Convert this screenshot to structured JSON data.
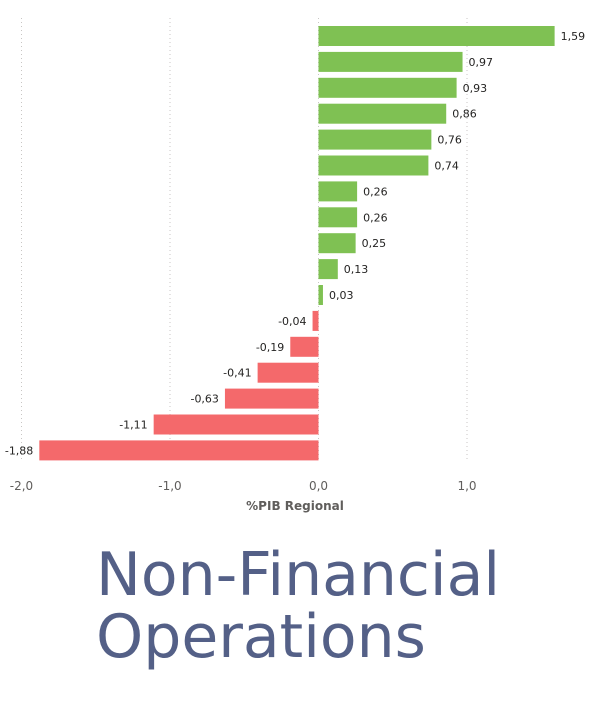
{
  "caption": {
    "line1": "Non-Financial",
    "line2": "Operations"
  },
  "chart_data": {
    "type": "bar",
    "orientation": "horizontal",
    "values": [
      1.59,
      0.97,
      0.93,
      0.86,
      0.76,
      0.74,
      0.26,
      0.26,
      0.25,
      0.13,
      0.03,
      -0.04,
      -0.19,
      -0.41,
      -0.63,
      -1.11,
      -1.88
    ],
    "data_labels": [
      "1,59",
      "0,97",
      "0,93",
      "0,86",
      "0,76",
      "0,74",
      "0,26",
      "0,26",
      "0,25",
      "0,13",
      "0,03",
      "-0,04",
      "-0,19",
      "-0,41",
      "-0,63",
      "-1,11",
      "-1,88"
    ],
    "xlabel": "%PIB Regional",
    "xlim": [
      -2.0,
      1.0
    ],
    "xticks": [
      -2.0,
      -1.0,
      0.0,
      1.0
    ],
    "xtick_labels": [
      "-2,0",
      "-1,0",
      "0,0",
      "1,0"
    ],
    "grid": "vertical-dotted",
    "colors": {
      "positive": "#7fc153",
      "negative": "#f4696b"
    }
  }
}
